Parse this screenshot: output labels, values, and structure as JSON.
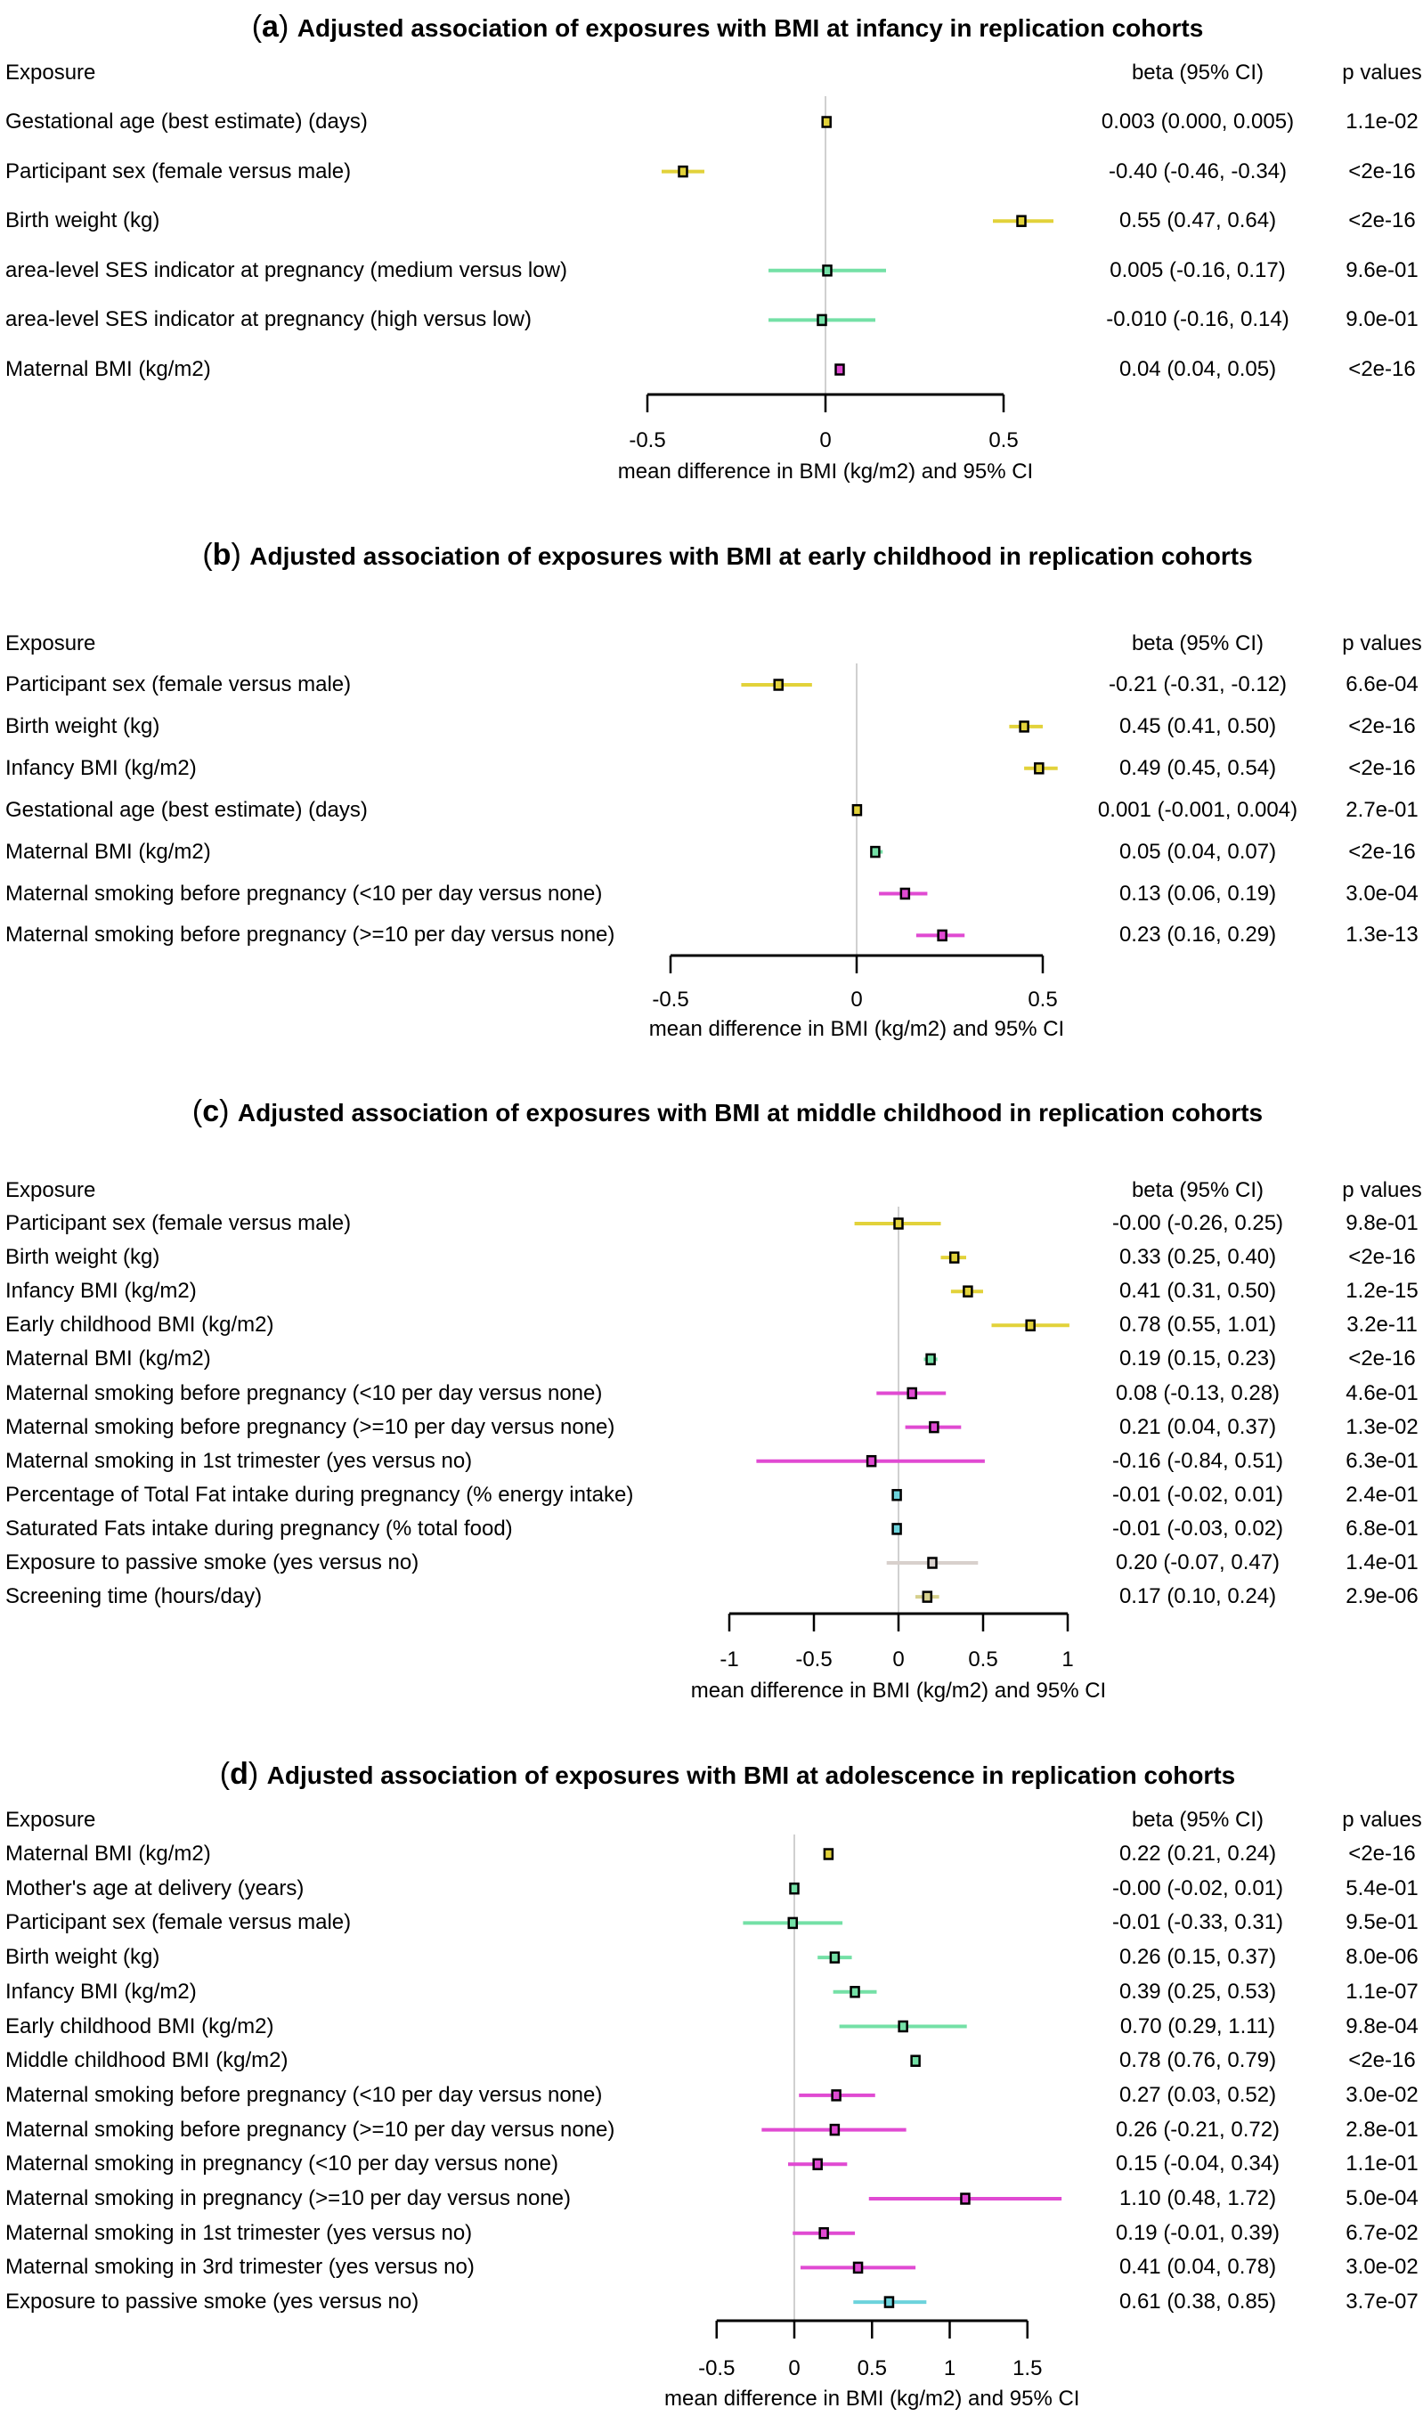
{
  "colors": {
    "yellow": "#e2d23a",
    "green": "#74e0a6",
    "magenta": "#e04ad2",
    "cyan": "#6cd3dc",
    "gray": "#d8d0cc",
    "khaki": "#d6d08e",
    "marker_edge": "#000000",
    "zero_line": "#d0d0d0"
  },
  "column_headers": {
    "exposure": "Exposure",
    "beta": "beta (95% CI)",
    "p": "p values"
  },
  "chart_data": [
    {
      "type": "forest",
      "letter": "a",
      "title": "Adjusted association of exposures with BMI at infancy in replication cohorts",
      "xlabel": "mean difference in BMI (kg/m2) and 95% CI",
      "xlim": [
        -0.5,
        0.5
      ],
      "ticks": [
        -0.5,
        0,
        0.5
      ],
      "tick_labels": [
        "-0.5",
        "0",
        "0.5"
      ],
      "rows": [
        {
          "label": "Gestational age (best estimate) (days)",
          "beta": 0.003,
          "lo": 0.0,
          "hi": 0.005,
          "ci_text": "0.003 (0.000, 0.005)",
          "p": "1.1e-02",
          "color": "yellow"
        },
        {
          "label": "Participant sex (female versus male)",
          "beta": -0.4,
          "lo": -0.46,
          "hi": -0.34,
          "ci_text": "-0.40 (-0.46, -0.34)",
          "p": "<2e-16",
          "color": "yellow"
        },
        {
          "label": "Birth weight (kg)",
          "beta": 0.55,
          "lo": 0.47,
          "hi": 0.64,
          "ci_text": "0.55 (0.47, 0.64)",
          "p": "<2e-16",
          "color": "yellow"
        },
        {
          "label": "area-level SES indicator at pregnancy (medium versus low)",
          "beta": 0.005,
          "lo": -0.16,
          "hi": 0.17,
          "ci_text": "0.005 (-0.16, 0.17)",
          "p": "9.6e-01",
          "color": "green"
        },
        {
          "label": "area-level SES indicator at pregnancy (high versus low)",
          "beta": -0.01,
          "lo": -0.16,
          "hi": 0.14,
          "ci_text": "-0.010 (-0.16, 0.14)",
          "p": "9.0e-01",
          "color": "green"
        },
        {
          "label": "Maternal BMI (kg/m2)",
          "beta": 0.04,
          "lo": 0.04,
          "hi": 0.05,
          "ci_text": "0.04 (0.04, 0.05)",
          "p": "<2e-16",
          "color": "magenta"
        }
      ]
    },
    {
      "type": "forest",
      "letter": "b",
      "title": "Adjusted association of exposures with BMI at early childhood in replication cohorts",
      "xlabel": "mean difference in BMI (kg/m2) and 95% CI",
      "xlim": [
        -0.5,
        0.5
      ],
      "ticks": [
        -0.5,
        0,
        0.5
      ],
      "tick_labels": [
        "-0.5",
        "0",
        "0.5"
      ],
      "rows": [
        {
          "label": "Participant sex (female versus male)",
          "beta": -0.21,
          "lo": -0.31,
          "hi": -0.12,
          "ci_text": "-0.21 (-0.31, -0.12)",
          "p": "6.6e-04",
          "color": "yellow"
        },
        {
          "label": "Birth weight (kg)",
          "beta": 0.45,
          "lo": 0.41,
          "hi": 0.5,
          "ci_text": "0.45 (0.41, 0.50)",
          "p": "<2e-16",
          "color": "yellow"
        },
        {
          "label": "Infancy BMI (kg/m2)",
          "beta": 0.49,
          "lo": 0.45,
          "hi": 0.54,
          "ci_text": "0.49 (0.45, 0.54)",
          "p": "<2e-16",
          "color": "yellow"
        },
        {
          "label": "Gestational age (best estimate) (days)",
          "beta": 0.001,
          "lo": -0.001,
          "hi": 0.004,
          "ci_text": "0.001 (-0.001, 0.004)",
          "p": "2.7e-01",
          "color": "yellow"
        },
        {
          "label": "Maternal BMI (kg/m2)",
          "beta": 0.05,
          "lo": 0.04,
          "hi": 0.07,
          "ci_text": "0.05 (0.04, 0.07)",
          "p": "<2e-16",
          "color": "green"
        },
        {
          "label": "Maternal smoking before pregnancy (<10 per day versus none)",
          "beta": 0.13,
          "lo": 0.06,
          "hi": 0.19,
          "ci_text": "0.13 (0.06, 0.19)",
          "p": "3.0e-04",
          "color": "magenta"
        },
        {
          "label": "Maternal smoking before pregnancy (>=10 per day versus none)",
          "beta": 0.23,
          "lo": 0.16,
          "hi": 0.29,
          "ci_text": "0.23 (0.16, 0.29)",
          "p": "1.3e-13",
          "color": "magenta"
        }
      ]
    },
    {
      "type": "forest",
      "letter": "c",
      "title": "Adjusted association of exposures with BMI at middle childhood in replication cohorts",
      "xlabel": "mean difference in BMI (kg/m2) and 95% CI",
      "xlim": [
        -1,
        1
      ],
      "ticks": [
        -1,
        -0.5,
        0,
        0.5,
        1
      ],
      "tick_labels": [
        "-1",
        "-0.5",
        "0",
        "0.5",
        "1"
      ],
      "rows": [
        {
          "label": "Participant sex (female versus male)",
          "beta": -0.0,
          "lo": -0.26,
          "hi": 0.25,
          "ci_text": "-0.00 (-0.26, 0.25)",
          "p": "9.8e-01",
          "color": "yellow"
        },
        {
          "label": "Birth weight (kg)",
          "beta": 0.33,
          "lo": 0.25,
          "hi": 0.4,
          "ci_text": "0.33 (0.25, 0.40)",
          "p": "<2e-16",
          "color": "yellow"
        },
        {
          "label": "Infancy BMI (kg/m2)",
          "beta": 0.41,
          "lo": 0.31,
          "hi": 0.5,
          "ci_text": "0.41 (0.31, 0.50)",
          "p": "1.2e-15",
          "color": "yellow"
        },
        {
          "label": "Early childhood BMI (kg/m2)",
          "beta": 0.78,
          "lo": 0.55,
          "hi": 1.01,
          "ci_text": "0.78 (0.55, 1.01)",
          "p": "3.2e-11",
          "color": "yellow"
        },
        {
          "label": "Maternal BMI (kg/m2)",
          "beta": 0.19,
          "lo": 0.15,
          "hi": 0.23,
          "ci_text": "0.19 (0.15, 0.23)",
          "p": "<2e-16",
          "color": "green"
        },
        {
          "label": "Maternal smoking before pregnancy (<10 per day versus none)",
          "beta": 0.08,
          "lo": -0.13,
          "hi": 0.28,
          "ci_text": "0.08 (-0.13, 0.28)",
          "p": "4.6e-01",
          "color": "magenta"
        },
        {
          "label": "Maternal smoking before pregnancy (>=10 per day versus none)",
          "beta": 0.21,
          "lo": 0.04,
          "hi": 0.37,
          "ci_text": "0.21 (0.04, 0.37)",
          "p": "1.3e-02",
          "color": "magenta"
        },
        {
          "label": "Maternal smoking in 1st trimester (yes versus no)",
          "beta": -0.16,
          "lo": -0.84,
          "hi": 0.51,
          "ci_text": "-0.16 (-0.84, 0.51)",
          "p": "6.3e-01",
          "color": "magenta"
        },
        {
          "label": "Percentage of Total Fat intake during pregnancy (% energy intake)",
          "beta": -0.01,
          "lo": -0.02,
          "hi": 0.01,
          "ci_text": "-0.01 (-0.02, 0.01)",
          "p": "2.4e-01",
          "color": "cyan"
        },
        {
          "label": "Saturated Fats intake during pregnancy (% total food)",
          "beta": -0.01,
          "lo": -0.03,
          "hi": 0.02,
          "ci_text": "-0.01 (-0.03, 0.02)",
          "p": "6.8e-01",
          "color": "cyan"
        },
        {
          "label": "Exposure to passive smoke (yes versus no)",
          "beta": 0.2,
          "lo": -0.07,
          "hi": 0.47,
          "ci_text": "0.20 (-0.07, 0.47)",
          "p": "1.4e-01",
          "color": "gray"
        },
        {
          "label": "Screening time (hours/day)",
          "beta": 0.17,
          "lo": 0.1,
          "hi": 0.24,
          "ci_text": "0.17 (0.10, 0.24)",
          "p": "2.9e-06",
          "color": "khaki"
        }
      ]
    },
    {
      "type": "forest",
      "letter": "d",
      "title": "Adjusted association of exposures with BMI at adolescence in replication cohorts",
      "xlabel": "mean difference in BMI (kg/m2) and 95% CI",
      "xlim": [
        -0.5,
        1.5
      ],
      "ticks": [
        -0.5,
        0,
        0.5,
        1,
        1.5
      ],
      "tick_labels": [
        "-0.5",
        "0",
        "0.5",
        "1",
        "1.5"
      ],
      "rows": [
        {
          "label": "Maternal BMI (kg/m2)",
          "beta": 0.22,
          "lo": 0.21,
          "hi": 0.24,
          "ci_text": "0.22 (0.21, 0.24)",
          "p": "<2e-16",
          "color": "yellow"
        },
        {
          "label": "Mother's age at delivery (years)",
          "beta": -0.0,
          "lo": -0.02,
          "hi": 0.01,
          "ci_text": "-0.00 (-0.02, 0.01)",
          "p": "5.4e-01",
          "color": "green"
        },
        {
          "label": "Participant sex (female versus male)",
          "beta": -0.01,
          "lo": -0.33,
          "hi": 0.31,
          "ci_text": "-0.01 (-0.33, 0.31)",
          "p": "9.5e-01",
          "color": "green"
        },
        {
          "label": "Birth weight (kg)",
          "beta": 0.26,
          "lo": 0.15,
          "hi": 0.37,
          "ci_text": "0.26 (0.15, 0.37)",
          "p": "8.0e-06",
          "color": "green"
        },
        {
          "label": "Infancy BMI (kg/m2)",
          "beta": 0.39,
          "lo": 0.25,
          "hi": 0.53,
          "ci_text": "0.39 (0.25, 0.53)",
          "p": "1.1e-07",
          "color": "green"
        },
        {
          "label": "Early childhood BMI (kg/m2)",
          "beta": 0.7,
          "lo": 0.29,
          "hi": 1.11,
          "ci_text": "0.70 (0.29, 1.11)",
          "p": "9.8e-04",
          "color": "green"
        },
        {
          "label": "Middle childhood BMI (kg/m2)",
          "beta": 0.78,
          "lo": 0.76,
          "hi": 0.79,
          "ci_text": "0.78 (0.76, 0.79)",
          "p": "<2e-16",
          "color": "green"
        },
        {
          "label": "Maternal smoking before pregnancy (<10 per day versus none)",
          "beta": 0.27,
          "lo": 0.03,
          "hi": 0.52,
          "ci_text": "0.27 (0.03, 0.52)",
          "p": "3.0e-02",
          "color": "magenta"
        },
        {
          "label": "Maternal smoking before pregnancy (>=10 per day versus none)",
          "beta": 0.26,
          "lo": -0.21,
          "hi": 0.72,
          "ci_text": "0.26 (-0.21, 0.72)",
          "p": "2.8e-01",
          "color": "magenta"
        },
        {
          "label": "Maternal smoking in pregnancy (<10 per day versus none)",
          "beta": 0.15,
          "lo": -0.04,
          "hi": 0.34,
          "ci_text": "0.15 (-0.04, 0.34)",
          "p": "1.1e-01",
          "color": "magenta"
        },
        {
          "label": "Maternal smoking in pregnancy (>=10 per day versus none)",
          "beta": 1.1,
          "lo": 0.48,
          "hi": 1.72,
          "ci_text": "1.10 (0.48, 1.72)",
          "p": "5.0e-04",
          "color": "magenta"
        },
        {
          "label": "Maternal smoking in 1st trimester (yes versus no)",
          "beta": 0.19,
          "lo": -0.01,
          "hi": 0.39,
          "ci_text": "0.19 (-0.01, 0.39)",
          "p": "6.7e-02",
          "color": "magenta"
        },
        {
          "label": "Maternal smoking in 3rd trimester (yes versus no)",
          "beta": 0.41,
          "lo": 0.04,
          "hi": 0.78,
          "ci_text": "0.41 (0.04, 0.78)",
          "p": "3.0e-02",
          "color": "magenta"
        },
        {
          "label": "Exposure to passive smoke (yes versus no)",
          "beta": 0.61,
          "lo": 0.38,
          "hi": 0.85,
          "ci_text": "0.61 (0.38, 0.85)",
          "p": "3.7e-07",
          "color": "cyan"
        }
      ]
    }
  ]
}
